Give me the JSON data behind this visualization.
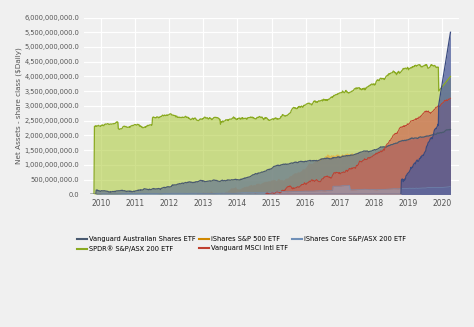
{
  "title": "",
  "ylabel": "Net Assets - share class ($Daily)",
  "xlabel": "",
  "ylim": [
    0,
    6000000000
  ],
  "xlim": [
    2009.5,
    2020.5
  ],
  "yticks": [
    0,
    500000000,
    1000000000,
    1500000000,
    2000000000,
    2500000000,
    3000000000,
    3500000000,
    4000000000,
    4500000000,
    5000000000,
    5500000000,
    6000000000
  ],
  "xticks": [
    2010,
    2011,
    2012,
    2013,
    2014,
    2015,
    2016,
    2017,
    2018,
    2019,
    2020
  ],
  "ytick_labels": [
    "0.0",
    "500,000,000.0",
    "1,000,000,000.0",
    "1,500,000,000.0",
    "2,000,000,000.0",
    "2,500,000,000.0",
    "3,000,000,000.0",
    "3,500,000,000.0",
    "4,000,000,000.0",
    "4,500,000,000.0",
    "5,000,000,000.0",
    "5,500,000,000.0",
    "6,000,000,000.0"
  ],
  "colors": {
    "VAS_line": "#4a5a70",
    "VAS_fill": "#6a7a90",
    "STW_line": "#8aaa20",
    "STW_fill": "#a8c830",
    "IVV_line": "#d08800",
    "IVV_fill": "#e8a830",
    "VGS_line": "#c04030",
    "VGS_fill": "#d06050",
    "IOZ_line": "#7090b8",
    "IOZ_fill": "#90a8c8",
    "BIG_line": "#3a4a80",
    "BIG_fill": "#4a5a9a"
  },
  "legend": [
    {
      "label": "Vanguard Australian Shares ETF",
      "color": "#4a5a70"
    },
    {
      "label": "SPDR® S&P/ASX 200 ETF",
      "color": "#8aaa20"
    },
    {
      "label": "iShares S&P 500 ETF",
      "color": "#d08800"
    },
    {
      "label": "Vanguard MSCI Intl ETF",
      "color": "#c04030"
    },
    {
      "label": "iShares Core S&P/ASX 200 ETF",
      "color": "#7090b8"
    }
  ],
  "background_color": "#f0f0f0"
}
